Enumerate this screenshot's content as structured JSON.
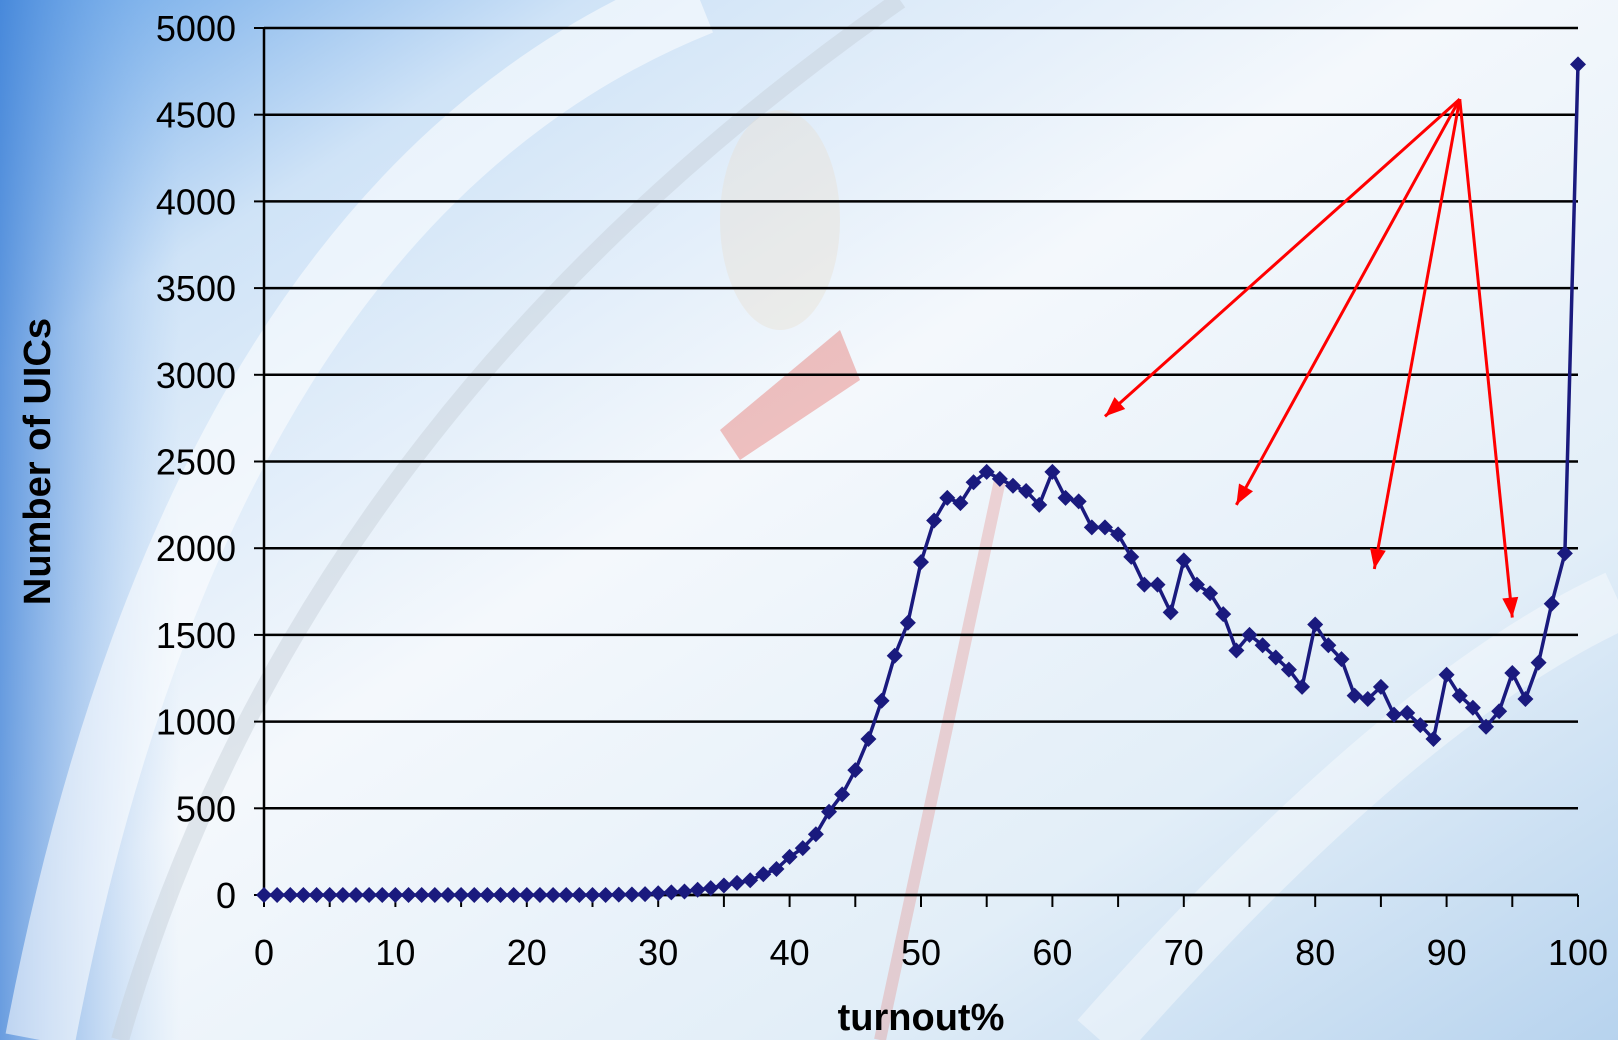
{
  "chart_data": {
    "type": "line",
    "title": "",
    "xlabel": "turnout%",
    "ylabel": "Number of UICs",
    "xlim": [
      0,
      100
    ],
    "ylim": [
      0,
      5000
    ],
    "xticks": [
      0,
      10,
      20,
      30,
      40,
      50,
      60,
      70,
      80,
      90,
      100
    ],
    "yticks": [
      0,
      500,
      1000,
      1500,
      2000,
      2500,
      3000,
      3500,
      4000,
      4500,
      5000
    ],
    "grid": "horizontal",
    "legend": "none",
    "series_color": "#1a1a7e",
    "annotation_color": "#ff0000",
    "x": [
      0,
      1,
      2,
      3,
      4,
      5,
      6,
      7,
      8,
      9,
      10,
      11,
      12,
      13,
      14,
      15,
      16,
      17,
      18,
      19,
      20,
      21,
      22,
      23,
      24,
      25,
      26,
      27,
      28,
      29,
      30,
      31,
      32,
      33,
      34,
      35,
      36,
      37,
      38,
      39,
      40,
      41,
      42,
      43,
      44,
      45,
      46,
      47,
      48,
      49,
      50,
      51,
      52,
      53,
      54,
      55,
      56,
      57,
      58,
      59,
      60,
      61,
      62,
      63,
      64,
      65,
      66,
      67,
      68,
      69,
      70,
      71,
      72,
      73,
      74,
      75,
      76,
      77,
      78,
      79,
      80,
      81,
      82,
      83,
      84,
      85,
      86,
      87,
      88,
      89,
      90,
      91,
      92,
      93,
      94,
      95,
      96,
      97,
      98,
      99,
      100
    ],
    "y": [
      0,
      0,
      0,
      0,
      0,
      0,
      0,
      0,
      0,
      0,
      0,
      0,
      0,
      0,
      0,
      0,
      0,
      0,
      0,
      0,
      0,
      0,
      0,
      0,
      0,
      0,
      0,
      2,
      3,
      5,
      10,
      15,
      20,
      30,
      40,
      55,
      70,
      85,
      120,
      150,
      220,
      270,
      350,
      480,
      580,
      720,
      900,
      1120,
      1380,
      1570,
      1920,
      2160,
      2290,
      2260,
      2380,
      2440,
      2400,
      2360,
      2330,
      2250,
      2440,
      2290,
      2270,
      2120,
      2120,
      2080,
      1950,
      1790,
      1790,
      1630,
      1930,
      1790,
      1740,
      1620,
      1410,
      1500,
      1440,
      1370,
      1300,
      1200,
      1560,
      1440,
      1360,
      1150,
      1130,
      1200,
      1040,
      1050,
      980,
      900,
      1270,
      1150,
      1080,
      970,
      1060,
      1280,
      1130,
      1340,
      1680,
      1970,
      4790
    ],
    "annotations": [
      {
        "type": "arrow",
        "from": [
          91,
          4590
        ],
        "to": [
          64,
          2760
        ]
      },
      {
        "type": "arrow",
        "from": [
          91,
          4590
        ],
        "to": [
          74,
          2250
        ]
      },
      {
        "type": "arrow",
        "from": [
          91,
          4590
        ],
        "to": [
          84.5,
          1880
        ]
      },
      {
        "type": "arrow",
        "from": [
          91,
          4590
        ],
        "to": [
          95,
          1600
        ]
      }
    ]
  }
}
